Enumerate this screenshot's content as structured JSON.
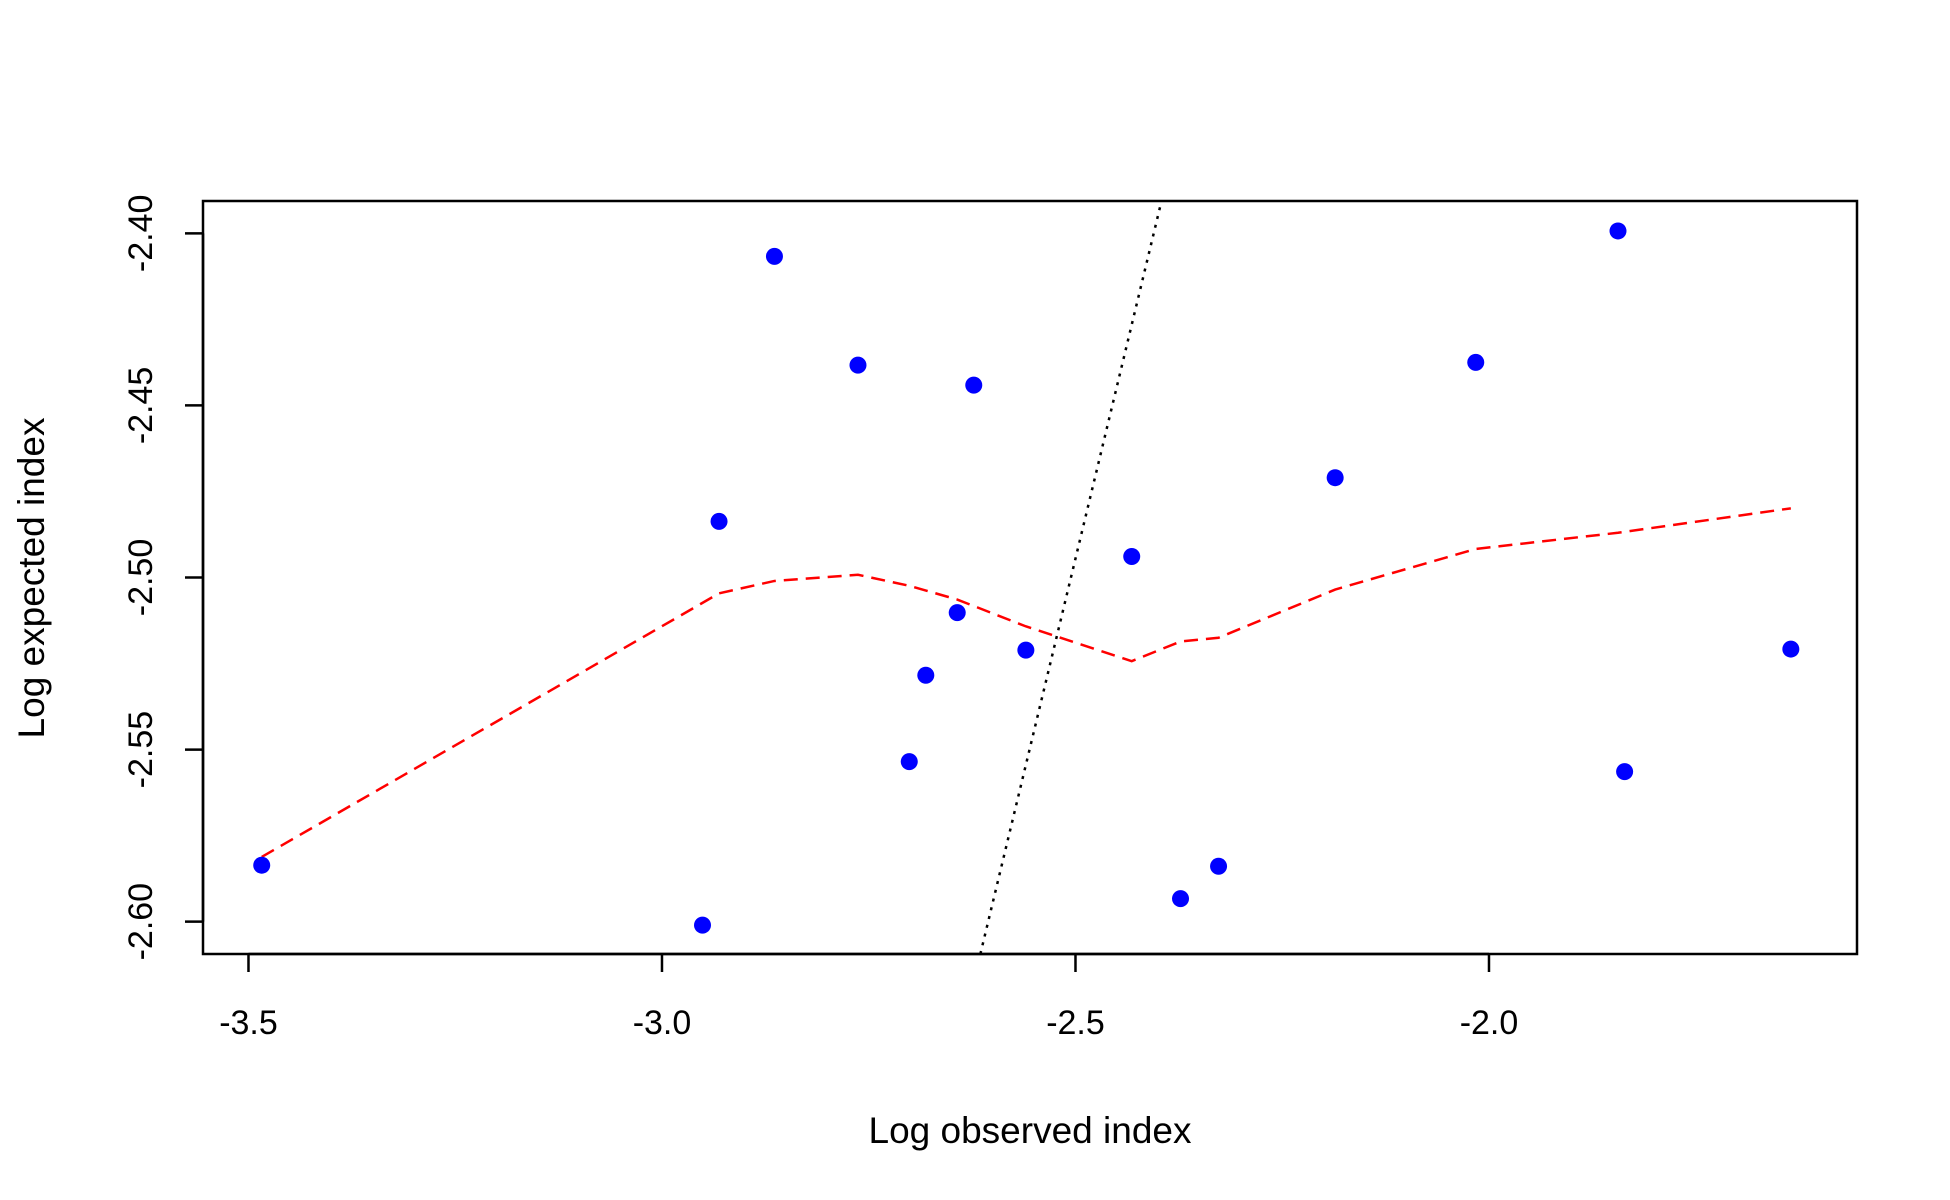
{
  "chart_data": {
    "type": "scatter",
    "title": "",
    "xlabel": "Log observed index",
    "ylabel": "Log expected index",
    "xlim": [
      -3.555,
      -1.555
    ],
    "ylim": [
      -2.6094,
      -2.3906
    ],
    "xticks": [
      -3.5,
      -3.0,
      -2.5,
      -2.0
    ],
    "xtick_labels": [
      "-3.5",
      "-3.0",
      "-2.5",
      "-2.0"
    ],
    "yticks": [
      -2.6,
      -2.55,
      -2.5,
      -2.45,
      -2.4
    ],
    "ytick_labels": [
      "-2.60",
      "-2.55",
      "-2.50",
      "-2.45",
      "-2.40"
    ],
    "grid": false,
    "legend": "none",
    "points": {
      "color": "#0000ff",
      "x": [
        -3.484,
        -2.951,
        -2.931,
        -2.864,
        -2.763,
        -2.701,
        -2.681,
        -2.643,
        -2.623,
        -2.56,
        -2.432,
        -2.373,
        -2.327,
        -2.186,
        -2.016,
        -1.844,
        -1.836,
        -1.635
      ],
      "y": [
        -2.5836,
        -2.601,
        -2.4837,
        -2.4067,
        -2.4383,
        -2.5535,
        -2.5284,
        -2.5102,
        -2.4441,
        -2.5211,
        -2.4939,
        -2.5933,
        -2.5839,
        -2.471,
        -2.4375,
        -2.3993,
        -2.5564,
        -2.5208
      ]
    },
    "smooth_line": {
      "color": "#ff0000",
      "style": "dashed",
      "x": [
        -3.484,
        -2.931,
        -2.864,
        -2.763,
        -2.701,
        -2.643,
        -2.56,
        -2.432,
        -2.373,
        -2.327,
        -2.186,
        -2.016,
        -1.844,
        -1.635
      ],
      "y": [
        -2.5812,
        -2.5046,
        -2.501,
        -2.4992,
        -2.5024,
        -2.5064,
        -2.5142,
        -2.5243,
        -2.5186,
        -2.5175,
        -2.5035,
        -2.4917,
        -2.487,
        -2.4799
      ]
    },
    "reference_line": {
      "color": "#000000",
      "style": "dotted",
      "x": [
        -2.615,
        -2.396
      ],
      "y": [
        -2.6094,
        -2.3906
      ]
    }
  }
}
